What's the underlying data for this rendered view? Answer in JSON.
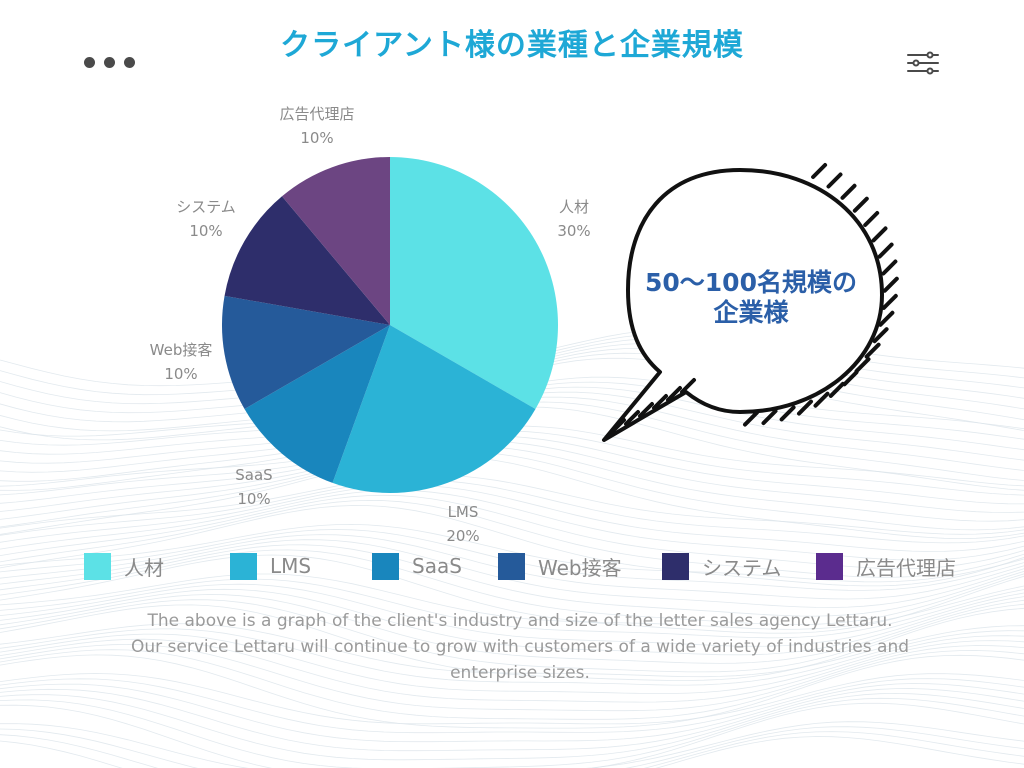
{
  "title": "クライアント様の業種と企業規模",
  "toolbar": {
    "dots_icon": "more-dots-icon",
    "settings_icon": "settings-sliders-icon"
  },
  "chart_data": {
    "type": "pie",
    "title": "クライアント様の業種と企業規模",
    "categories": [
      "人材",
      "LMS",
      "SaaS",
      "Web接客",
      "システム",
      "広告代理店"
    ],
    "values": [
      30,
      20,
      10,
      10,
      10,
      10
    ],
    "value_labels": [
      "30%",
      "20%",
      "10%",
      "10%",
      "10%",
      "10%"
    ],
    "colors": [
      "#5ce1e6",
      "#2bb3d6",
      "#1986bd",
      "#255a9a",
      "#2e2e6b",
      "#6c4582"
    ],
    "legend_colors": [
      "#5ce1e6",
      "#2bb3d6",
      "#1986bd",
      "#255a9a",
      "#2e2e6b",
      "#5b2c8e"
    ],
    "legend": "bottom",
    "start_angle": "top",
    "direction": "clockwise"
  },
  "callout": {
    "line1": "50〜100名規模の",
    "line2": "企業様",
    "color": "#2b5fa8"
  },
  "caption": {
    "line1": "The above is a graph of the client's industry and size of the letter sales agency Lettaru.",
    "line2": "Our service Lettaru will continue to grow with customers of a wide variety of industries and",
    "line3": "enterprise sizes."
  },
  "colors": {
    "title": "#1ea8d6",
    "muted_text": "#8a8a8a"
  }
}
